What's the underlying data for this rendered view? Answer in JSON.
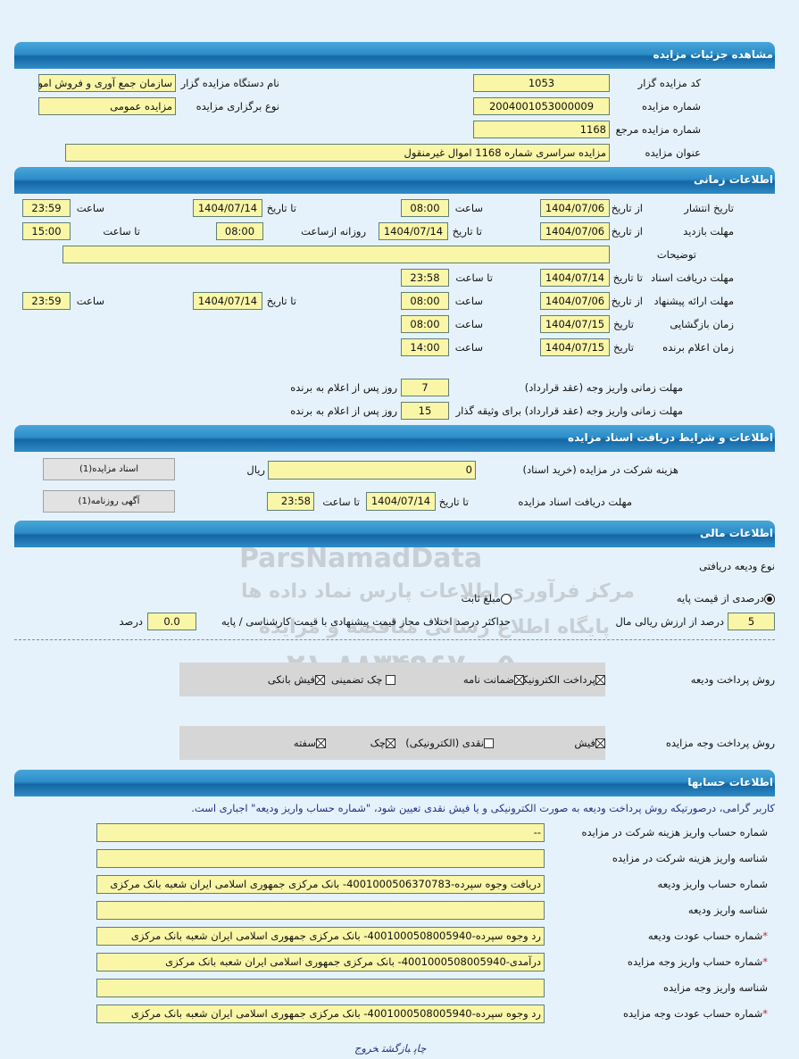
{
  "watermark": {
    "line1": "ParsNamadData",
    "line2": "مرکز فرآوری اطلاعات پارس نماد داده ها",
    "line3": "پایگاه اطلاع رسانی مناقصه و مزایده",
    "line4": "۰۲۱-۸۸۳۴۹۶۷۰-۵"
  },
  "details": {
    "title": "مشاهده جزئیات مزایده",
    "code_label": "کد مزایده گزار",
    "code": "1053",
    "org_label": "نام دستگاه مزایده گزار",
    "org": "سازمان جمع آوری و فروش امو",
    "number_label": "شماره مزایده",
    "number": "2004001053000009",
    "type_label": "نوع برگزاری مزایده",
    "type": "مزایده عمومی",
    "ref_label": "شماره مزایده مرجع",
    "ref": "1168",
    "subject_label": "عنوان مزایده",
    "subject": "مزایده سراسری شماره 1168 اموال غیرمنقول"
  },
  "timing": {
    "title": "اطلاعات زمانی",
    "publish": {
      "label": "تاریخ انتشار",
      "from_label": "از تاریخ",
      "from": "1404/07/06",
      "time_label": "ساعت",
      "time": "08:00",
      "to_label": "تا تاریخ",
      "to": "1404/07/14",
      "time2_label": "ساعت",
      "time2": "23:59"
    },
    "visit": {
      "label": "مهلت بازدید",
      "from_label": "از تاریخ",
      "from": "1404/07/06",
      "to_label": "تا تاریخ",
      "to": "1404/07/14",
      "daily_label": "روزانه ازساعت",
      "daily": "08:00",
      "until_label": "تا ساعت",
      "until": "15:00"
    },
    "desc_label": "توضیحات",
    "desc": "",
    "docs": {
      "label": "مهلت دریافت اسناد",
      "to_label": "تا تاریخ",
      "to": "1404/07/14",
      "time_label": "تا ساعت",
      "time": "23:58"
    },
    "offer": {
      "label": "مهلت ارائه پیشنهاد",
      "from_label": "از تاریخ",
      "from": "1404/07/06",
      "time_label": "ساعت",
      "time": "08:00",
      "to_label": "تا تاریخ",
      "to": "1404/07/14",
      "time2_label": "ساعت",
      "time2": "23:59"
    },
    "opening": {
      "label": "زمان بازگشایی",
      "date_label": "تاریخ",
      "date": "1404/07/15",
      "time_label": "ساعت",
      "time": "08:00"
    },
    "winner": {
      "label": "زمان اعلام برنده",
      "date_label": "تاریخ",
      "date": "1404/07/15",
      "time_label": "ساعت",
      "time": "14:00"
    },
    "pay1_label": "مهلت زمانی واریز وجه (عقد قرارداد)",
    "pay1": "7",
    "pay1_suffix": "روز پس از اعلام به برنده",
    "pay2_label": "مهلت زمانی واریز وجه (عقد قرارداد) برای وثیقه گذار",
    "pay2": "15",
    "pay2_suffix": "روز پس از اعلام به برنده"
  },
  "docs": {
    "title": "اطلاعات و شرایط دریافت اسناد مزایده",
    "fee_label": "هزینه شرکت در مزایده (خرید اسناد)",
    "fee": "0",
    "currency": "ریال",
    "deadline_label": "مهلت دریافت اسناد مزایده",
    "to_label": "تا تاریخ",
    "to": "1404/07/14",
    "time_label": "تا ساعت",
    "time": "23:58",
    "btn_docs": "اسناد مزایده(1)",
    "btn_ad": "آگهی روزنامه(1)"
  },
  "finance": {
    "title": "اطلاعات مالی",
    "deposit_type_label": "نوع ودیعه دریافتی",
    "radio_percent": "درصدی از قیمت پایه",
    "radio_fixed": "مبلغ ثابت",
    "percent": "5",
    "percent_suffix": "درصد از ارزش ریالی مال",
    "max_diff_label": "حداکثر درصد اختلاف مجاز قیمت پیشنهادی با قیمت کارشناسی / پایه",
    "max_diff": "0.0",
    "max_diff_suffix": "درصد",
    "deposit_method_label": "روش پرداخت ودیعه",
    "deposit_methods": [
      {
        "label": "پرداخت الکترونیکی",
        "checked": true
      },
      {
        "label": "ضمانت نامه",
        "checked": true
      },
      {
        "label": "چک تضمینی",
        "checked": false
      },
      {
        "label": "فیش بانکی",
        "checked": true
      }
    ],
    "payment_method_label": "روش پرداخت وجه مزایده",
    "payment_methods": [
      {
        "label": "فیش",
        "checked": true
      },
      {
        "label": "نقدی (الکترونیکی)",
        "checked": false
      },
      {
        "label": "چک",
        "checked": true
      },
      {
        "label": "سفته",
        "checked": true
      }
    ]
  },
  "accounts": {
    "title": "اطلاعات حسابها",
    "note": "کاربر گرامی، درصورتیکه روش پرداخت ودیعه به صورت الکترونیکی و یا فیش نقدی تعیین شود، \"شماره حساب واریز ودیعه\" اجباری است.",
    "rows": [
      {
        "label": "شماره حساب واریز هزینه شرکت در مزایده",
        "value": "--",
        "required": false
      },
      {
        "label": "شناسه واریز هزینه شرکت در مزایده",
        "value": "",
        "required": false
      },
      {
        "label": "شماره حساب واریز ودیعه",
        "value": "دریافت وجوه سپرده-4001000506370783- بانک مرکزی جمهوری اسلامی ایران شعبه بانک مرکزی",
        "required": false
      },
      {
        "label": "شناسه واریز ودیعه",
        "value": "",
        "required": false
      },
      {
        "label": "شماره حساب عودت ودیعه",
        "value": "رد وجوه سپرده-4001000508005940- بانک مرکزی جمهوری اسلامی ایران شعبه بانک مرکزی",
        "required": true
      },
      {
        "label": "شماره حساب واریز وجه مزایده",
        "value": "درآمدی-4001000508005940- بانک مرکزی جمهوری اسلامی ایران شعبه بانک مرکزی",
        "required": true
      },
      {
        "label": "شناسه واریز وجه مزایده",
        "value": "",
        "required": false
      },
      {
        "label": "شماره حساب عودت وجه مزایده",
        "value": "رد وجوه سپرده-4001000508005940- بانک مرکزی جمهوری اسلامی ایران شعبه بانک مرکزی",
        "required": true
      }
    ],
    "required_mark": "*"
  },
  "footer": {
    "print": "چاپ",
    "back": "بازگشت",
    "exit": "خروج"
  }
}
